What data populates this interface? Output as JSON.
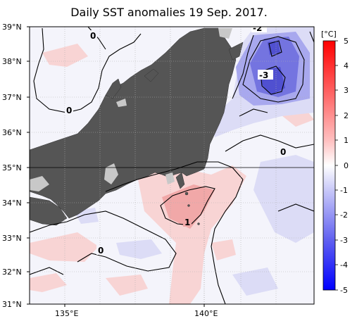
{
  "title": "Daily SST anomalies 19 Sep. 2017.",
  "map": {
    "lat_labels": [
      "39°N",
      "38°N",
      "37°N",
      "36°N",
      "35°N",
      "34°N",
      "33°N",
      "32°N",
      "31°N"
    ],
    "lon_labels": [
      "135°E",
      "140°E"
    ],
    "lat_range": [
      31,
      39
    ],
    "lon_range": [
      133.5,
      141.5
    ],
    "contour_labels": [
      "0",
      "0",
      "0",
      "0",
      "1",
      "-2",
      "-3"
    ]
  },
  "colorbar": {
    "unit": "[°C]",
    "ticks": [
      "5",
      "4",
      "3",
      "2",
      "1",
      "0",
      "-1",
      "-2",
      "-3",
      "-4",
      "-5"
    ]
  },
  "colors": {
    "land": "#555555",
    "lake": "#c8c8c8",
    "warm_light": "#f8d4d4",
    "warm_mid": "#f1a8a8",
    "cool_light": "#dcdcf6",
    "cool_mid": "#a8a8ee",
    "cool_strong": "#7474e0"
  }
}
